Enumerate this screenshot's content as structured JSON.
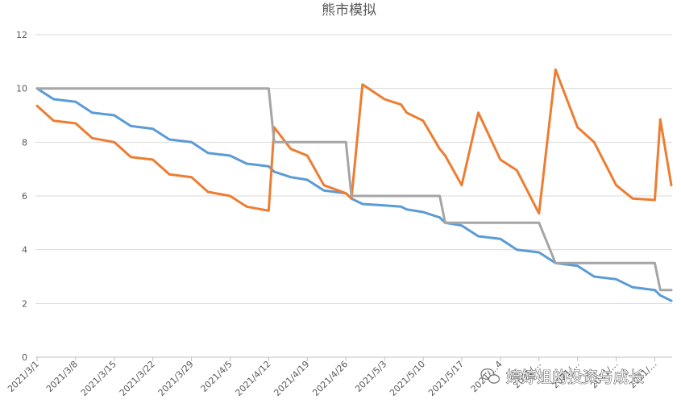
{
  "chart_data": {
    "type": "line",
    "title": "熊市模拟",
    "xlabel": "",
    "ylabel": "",
    "ylim": [
      0,
      12
    ],
    "yticks": [
      0,
      2,
      4,
      6,
      8,
      10,
      12
    ],
    "grid": true,
    "legend": "none",
    "x": [
      "2021/3/1",
      "2021/3/4",
      "2021/3/8",
      "2021/3/11",
      "2021/3/15",
      "2021/3/18",
      "2021/3/22",
      "2021/3/25",
      "2021/3/29",
      "2021/4/1",
      "2021/4/5",
      "2021/4/8",
      "2021/4/12",
      "2021/4/13",
      "2021/4/16",
      "2021/4/19",
      "2021/4/22",
      "2021/4/26",
      "2021/4/27",
      "2021/4/29",
      "2021/5/3",
      "2021/5/6",
      "2021/5/7",
      "2021/5/10",
      "2021/5/13",
      "2021/5/14",
      "2021/5/17",
      "2021/5/20",
      "2021/5/24",
      "2021/5/27",
      "2021/5/31",
      "2021/6/3",
      "2021/6/7",
      "2021/6/10",
      "2021/6/14",
      "2021/6/17",
      "2021/6/21",
      "2021/6/22",
      "2021/6/24"
    ],
    "xticks": [
      "2021/3/1",
      "2021/3/8",
      "2021/3/15",
      "2021/3/22",
      "2021/3/29",
      "2021/4/5",
      "2021/4/12",
      "2021/4/19",
      "2021/4/26",
      "2021/5/3",
      "2021/5/10",
      "2021/5/17",
      "2021/5/24",
      "2021/5/31",
      "2021/6/7",
      "2021/6/14",
      "2021/6/21"
    ],
    "xtick_display": [
      "2021/3/1",
      "2021/3/8",
      "2021/3/15",
      "2021/3/22",
      "2021/3/29",
      "2021/4/5",
      "2021/4/12",
      "2021/4/19",
      "2021/4/26",
      "2021/5/3",
      "2021/5/10",
      "2021/5/17",
      "2021/…4",
      "2021/…",
      "2021/…",
      "2021/…",
      "2021/…"
    ],
    "series": [
      {
        "color": "#5b9bd5",
        "values": [
          10,
          9.6,
          9.5,
          9.1,
          9.0,
          8.6,
          8.5,
          8.1,
          8.0,
          7.6,
          7.5,
          7.2,
          7.1,
          6.9,
          6.7,
          6.6,
          6.2,
          6.1,
          5.9,
          5.7,
          5.65,
          5.6,
          5.5,
          5.4,
          5.2,
          5.0,
          4.9,
          4.5,
          4.4,
          4.0,
          3.9,
          3.5,
          3.4,
          3.0,
          2.9,
          2.6,
          2.5,
          2.3,
          2.1
        ]
      },
      {
        "color": "#ed7d31",
        "values": [
          9.35,
          8.8,
          8.7,
          8.15,
          8.0,
          7.45,
          7.35,
          6.8,
          6.7,
          6.15,
          6.0,
          5.6,
          5.45,
          8.55,
          7.75,
          7.5,
          6.4,
          6.1,
          5.9,
          10.15,
          9.6,
          9.4,
          9.1,
          8.8,
          7.75,
          7.5,
          6.4,
          9.1,
          7.35,
          6.95,
          5.35,
          10.7,
          8.55,
          8.0,
          6.4,
          5.9,
          5.85,
          8.85,
          6.4
        ]
      },
      {
        "color": "#a5a5a5",
        "values": [
          10,
          10,
          10,
          10,
          10,
          10,
          10,
          10,
          10,
          10,
          10,
          10,
          10,
          8,
          8,
          8,
          8,
          8,
          6,
          6,
          6,
          6,
          6,
          6,
          6,
          5,
          5,
          5,
          5,
          5,
          5,
          3.5,
          3.5,
          3.5,
          3.5,
          3.5,
          3.5,
          2.5,
          2.5
        ]
      }
    ]
  },
  "watermark": {
    "text": "婷婷姐的投资与成长",
    "icon": "wechat-icon"
  }
}
